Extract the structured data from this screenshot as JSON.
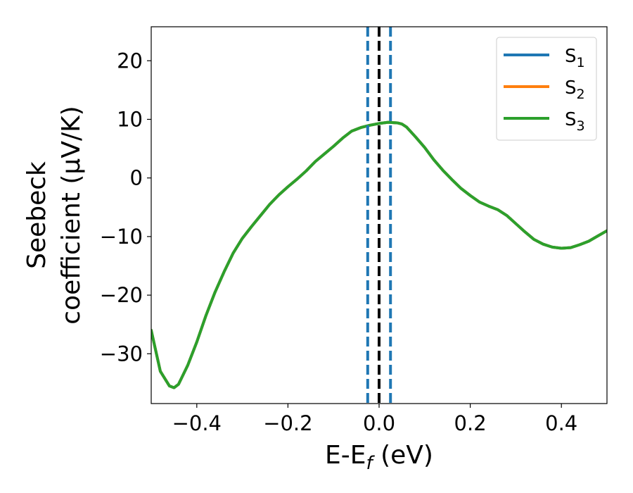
{
  "chart_data": {
    "type": "line",
    "xlabel": "E-E_f (eV)",
    "xlabel_main": "E-E",
    "xlabel_sub": "f",
    "xlabel_tail": " (eV)",
    "ylabel_line1": "Seebeck",
    "ylabel_line2": "coefficient  (μV/K)",
    "xlim": [
      -0.5,
      0.5
    ],
    "ylim": [
      -38.5,
      25.8
    ],
    "xticks": [
      -0.4,
      -0.2,
      0.0,
      0.2,
      0.4
    ],
    "xtick_labels": [
      "−0.4",
      "−0.2",
      "0.0",
      "0.2",
      "0.4"
    ],
    "yticks": [
      -30,
      -20,
      -10,
      0,
      10,
      20
    ],
    "ytick_labels": [
      "−30",
      "−20",
      "−10",
      "0",
      "10",
      "20"
    ],
    "grid": false,
    "legend_position": "top-right",
    "series": [
      {
        "name": "S_1",
        "label_main": "S",
        "label_sub": "1",
        "color": "#1f77b4",
        "x": [
          -0.5,
          -0.48,
          -0.46,
          -0.45,
          -0.44,
          -0.42,
          -0.4,
          -0.38,
          -0.36,
          -0.34,
          -0.32,
          -0.3,
          -0.28,
          -0.26,
          -0.24,
          -0.22,
          -0.2,
          -0.18,
          -0.16,
          -0.14,
          -0.12,
          -0.1,
          -0.08,
          -0.06,
          -0.04,
          -0.02,
          0.0,
          0.02,
          0.04,
          0.05,
          0.06,
          0.08,
          0.1,
          0.12,
          0.14,
          0.16,
          0.18,
          0.2,
          0.22,
          0.24,
          0.26,
          0.28,
          0.3,
          0.32,
          0.34,
          0.36,
          0.38,
          0.4,
          0.42,
          0.44,
          0.46,
          0.48,
          0.5
        ],
        "y": [
          -26,
          -33,
          -35.5,
          -35.8,
          -35.2,
          -32,
          -28,
          -23.5,
          -19.5,
          -16,
          -12.8,
          -10.3,
          -8.3,
          -6.4,
          -4.5,
          -2.9,
          -1.5,
          -0.2,
          1.2,
          2.8,
          4.1,
          5.4,
          6.8,
          8.0,
          8.6,
          9.0,
          9.3,
          9.5,
          9.4,
          9.2,
          8.7,
          7.0,
          5.2,
          3.1,
          1.3,
          -0.3,
          -1.8,
          -3.0,
          -4.1,
          -4.8,
          -5.4,
          -6.4,
          -7.8,
          -9.2,
          -10.5,
          -11.3,
          -11.8,
          -12.0,
          -11.9,
          -11.4,
          -10.8,
          -9.9,
          -9.0
        ]
      },
      {
        "name": "S_2",
        "label_main": "S",
        "label_sub": "2",
        "color": "#ff7f0e",
        "x": [
          -0.5,
          -0.48,
          -0.46,
          -0.45,
          -0.44,
          -0.42,
          -0.4,
          -0.38,
          -0.36,
          -0.34,
          -0.32,
          -0.3,
          -0.28,
          -0.26,
          -0.24,
          -0.22,
          -0.2,
          -0.18,
          -0.16,
          -0.14,
          -0.12,
          -0.1,
          -0.08,
          -0.06,
          -0.04,
          -0.02,
          0.0,
          0.02,
          0.04,
          0.05,
          0.06,
          0.08,
          0.1,
          0.12,
          0.14,
          0.16,
          0.18,
          0.2,
          0.22,
          0.24,
          0.26,
          0.28,
          0.3,
          0.32,
          0.34,
          0.36,
          0.38,
          0.4,
          0.42,
          0.44,
          0.46,
          0.48,
          0.5
        ],
        "y": [
          -26,
          -33,
          -35.5,
          -35.8,
          -35.2,
          -32,
          -28,
          -23.5,
          -19.5,
          -16,
          -12.8,
          -10.3,
          -8.3,
          -6.4,
          -4.5,
          -2.9,
          -1.5,
          -0.2,
          1.2,
          2.8,
          4.1,
          5.4,
          6.8,
          8.0,
          8.6,
          9.0,
          9.3,
          9.5,
          9.4,
          9.2,
          8.7,
          7.0,
          5.2,
          3.1,
          1.3,
          -0.3,
          -1.8,
          -3.0,
          -4.1,
          -4.8,
          -5.4,
          -6.4,
          -7.8,
          -9.2,
          -10.5,
          -11.3,
          -11.8,
          -12.0,
          -11.9,
          -11.4,
          -10.8,
          -9.9,
          -9.0
        ]
      },
      {
        "name": "S_3",
        "label_main": "S",
        "label_sub": "3",
        "color": "#2ca02c",
        "x": [
          -0.5,
          -0.48,
          -0.46,
          -0.45,
          -0.44,
          -0.42,
          -0.4,
          -0.38,
          -0.36,
          -0.34,
          -0.32,
          -0.3,
          -0.28,
          -0.26,
          -0.24,
          -0.22,
          -0.2,
          -0.18,
          -0.16,
          -0.14,
          -0.12,
          -0.1,
          -0.08,
          -0.06,
          -0.04,
          -0.02,
          0.0,
          0.02,
          0.04,
          0.05,
          0.06,
          0.08,
          0.1,
          0.12,
          0.14,
          0.16,
          0.18,
          0.2,
          0.22,
          0.24,
          0.26,
          0.28,
          0.3,
          0.32,
          0.34,
          0.36,
          0.38,
          0.4,
          0.42,
          0.44,
          0.46,
          0.48,
          0.5
        ],
        "y": [
          -26,
          -33,
          -35.5,
          -35.8,
          -35.2,
          -32,
          -28,
          -23.5,
          -19.5,
          -16,
          -12.8,
          -10.3,
          -8.3,
          -6.4,
          -4.5,
          -2.9,
          -1.5,
          -0.2,
          1.2,
          2.8,
          4.1,
          5.4,
          6.8,
          8.0,
          8.6,
          9.0,
          9.3,
          9.5,
          9.4,
          9.2,
          8.7,
          7.0,
          5.2,
          3.1,
          1.3,
          -0.3,
          -1.8,
          -3.0,
          -4.1,
          -4.8,
          -5.4,
          -6.4,
          -7.8,
          -9.2,
          -10.5,
          -11.3,
          -11.8,
          -12.0,
          -11.9,
          -11.4,
          -10.8,
          -9.9,
          -9.0
        ]
      }
    ],
    "vlines": [
      {
        "x": -0.025,
        "style": "dashed",
        "color": "#1f77b4"
      },
      {
        "x": 0.0,
        "style": "dashed",
        "color": "#000000"
      },
      {
        "x": 0.025,
        "style": "dashed",
        "color": "#1f77b4"
      }
    ]
  }
}
